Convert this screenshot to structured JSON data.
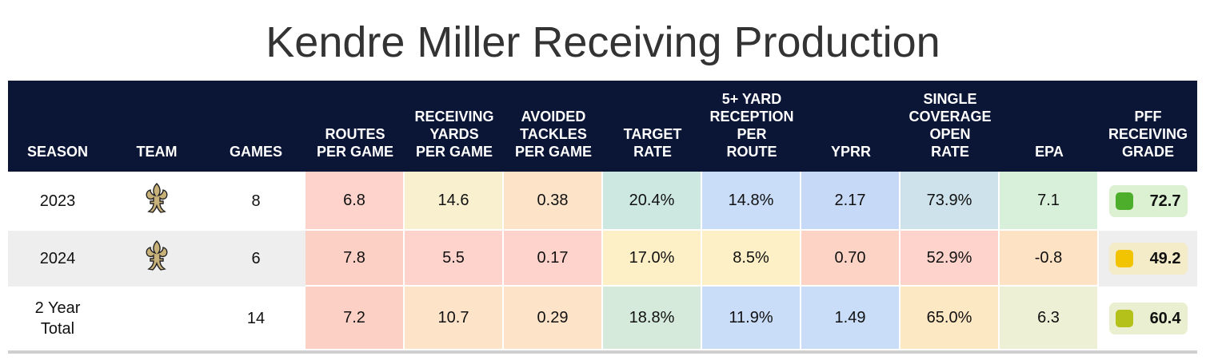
{
  "title": "Kendre Miller Receiving Production",
  "columns": [
    {
      "key": "season",
      "label": "SEASON",
      "width": 124
    },
    {
      "key": "team",
      "label": "TEAM",
      "width": 124
    },
    {
      "key": "games",
      "label": "GAMES",
      "width": 124
    },
    {
      "key": "routes",
      "label": "ROUTES\nPER GAME",
      "width": 124
    },
    {
      "key": "recyds",
      "label": "RECEIVING\nYARDS\nPER GAME",
      "width": 124
    },
    {
      "key": "avoided",
      "label": "AVOIDED\nTACKLES\nPER GAME",
      "width": 124
    },
    {
      "key": "target",
      "label": "TARGET\nRATE",
      "width": 124
    },
    {
      "key": "fiveyd",
      "label": "5+ YARD\nRECEPTION\nPER\nROUTE",
      "width": 124
    },
    {
      "key": "yprr",
      "label": "YPRR",
      "width": 124
    },
    {
      "key": "single",
      "label": "SINGLE\nCOVERAGE\nOPEN\nRATE",
      "width": 124
    },
    {
      "key": "epa",
      "label": "EPA",
      "width": 124
    },
    {
      "key": "grade",
      "label": "PFF\nRECEIVING\nGRADE",
      "width": 123
    }
  ],
  "rows": [
    {
      "season": "2023",
      "team_icon": "fleur-de-lis-icon",
      "games": "8",
      "bg": "#ffffff",
      "height": 74,
      "routes": {
        "v": "6.8",
        "c": "#fdd3cb"
      },
      "recyds": {
        "v": "14.6",
        "c": "#f8f0cf"
      },
      "avoided": {
        "v": "0.38",
        "c": "#fde4c9"
      },
      "target": {
        "v": "20.4%",
        "c": "#cde8e1"
      },
      "fiveyd": {
        "v": "14.8%",
        "c": "#c9dcf8"
      },
      "yprr": {
        "v": "2.17",
        "c": "#c6d9f7"
      },
      "single": {
        "v": "73.9%",
        "c": "#cde2ea"
      },
      "epa": {
        "v": "7.1",
        "c": "#d8efd9"
      },
      "grade": {
        "v": "72.7",
        "sq": "#4cae2a",
        "box": "#dcf0d2"
      }
    },
    {
      "season": "2024",
      "team_icon": "fleur-de-lis-icon",
      "games": "6",
      "bg": "#eeeeee",
      "height": 70,
      "routes": {
        "v": "7.8",
        "c": "#fdd0c6"
      },
      "recyds": {
        "v": "5.5",
        "c": "#fdd3cb"
      },
      "avoided": {
        "v": "0.17",
        "c": "#fdd3cb"
      },
      "target": {
        "v": "17.0%",
        "c": "#fdf0c6"
      },
      "fiveyd": {
        "v": "8.5%",
        "c": "#fdf0c6"
      },
      "yprr": {
        "v": "0.70",
        "c": "#fdd3c6"
      },
      "single": {
        "v": "52.9%",
        "c": "#fdd3cb"
      },
      "epa": {
        "v": "-0.8",
        "c": "#fde2c4"
      },
      "grade": {
        "v": "49.2",
        "sq": "#f2c400",
        "box": "#f4ecc8"
      }
    },
    {
      "season": "2 Year\nTotal",
      "team_icon": "",
      "games": "14",
      "bg": "#ffffff",
      "height": 80,
      "routes": {
        "v": "7.2",
        "c": "#fdd0c6"
      },
      "recyds": {
        "v": "10.7",
        "c": "#fde4c9"
      },
      "avoided": {
        "v": "0.29",
        "c": "#fde4c9"
      },
      "target": {
        "v": "18.8%",
        "c": "#d6eadc"
      },
      "fiveyd": {
        "v": "11.9%",
        "c": "#c9dcf8"
      },
      "yprr": {
        "v": "1.49",
        "c": "#c9dcf8"
      },
      "single": {
        "v": "65.0%",
        "c": "#fde8c4"
      },
      "epa": {
        "v": "6.3",
        "c": "#edf0d4"
      },
      "grade": {
        "v": "60.4",
        "sq": "#b3c11a",
        "box": "#e9efd0"
      }
    }
  ]
}
